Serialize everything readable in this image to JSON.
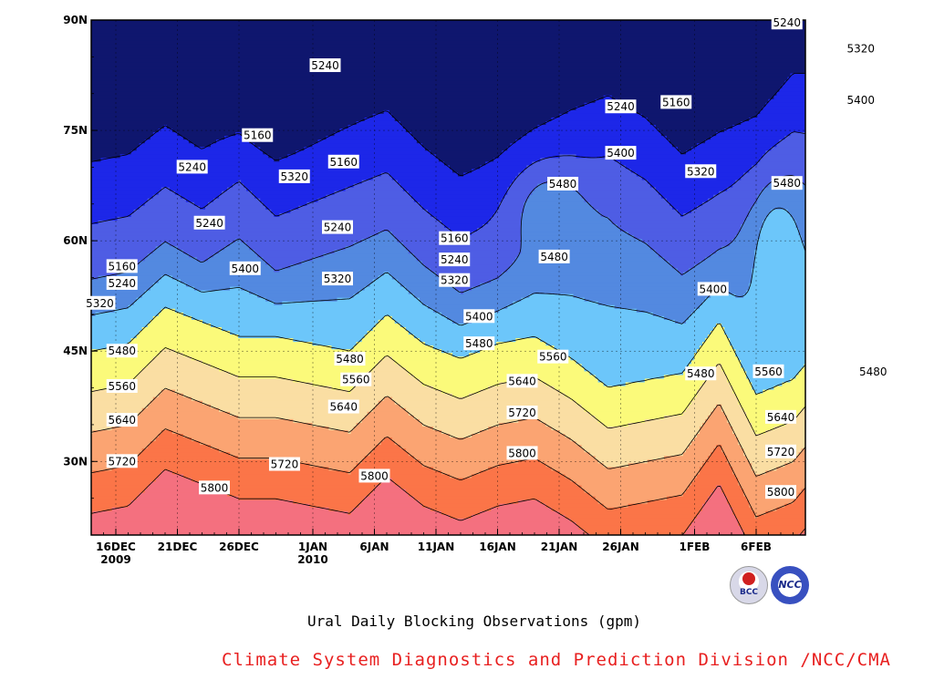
{
  "chart_data": {
    "type": "heatmap",
    "title": "Ural Daily Blocking Observations (gpm)",
    "xlabel": "",
    "ylabel": "",
    "x_tick_labels": [
      {
        "line1": "16DEC",
        "line2": "2009"
      },
      {
        "line1": "21DEC",
        "line2": ""
      },
      {
        "line1": "26DEC",
        "line2": ""
      },
      {
        "line1": "1JAN",
        "line2": "2010"
      },
      {
        "line1": "6JAN",
        "line2": ""
      },
      {
        "line1": "11JAN",
        "line2": ""
      },
      {
        "line1": "16JAN",
        "line2": ""
      },
      {
        "line1": "21JAN",
        "line2": ""
      },
      {
        "line1": "26JAN",
        "line2": ""
      },
      {
        "line1": "1FEB",
        "line2": ""
      },
      {
        "line1": "6FEB",
        "line2": ""
      }
    ],
    "x_day_range": [
      "14DEC2009",
      "10FEB2010"
    ],
    "y_tick_labels": [
      "30N",
      "45N",
      "60N",
      "75N",
      "90N"
    ],
    "ylim": [
      20,
      90
    ],
    "contour_levels": [
      5160,
      5240,
      5320,
      5400,
      5480,
      5560,
      5640,
      5720,
      5800
    ],
    "level_colors": [
      "#0f166e",
      "#1d27e8",
      "#4e5de4",
      "#5389e0",
      "#6cc6fa",
      "#fbfa7a",
      "#fadea3",
      "#fba472",
      "#fb7548",
      "#f4707f"
    ],
    "grid": true,
    "contour_labels": [
      {
        "text": "5160",
        "day": 16.5,
        "lat": 56.5
      },
      {
        "text": "5240",
        "day": 16.5,
        "lat": 54.2
      },
      {
        "text": "5320",
        "day": 14.7,
        "lat": 51.5
      },
      {
        "text": "5480",
        "day": 16.5,
        "lat": 45.0
      },
      {
        "text": "5560",
        "day": 16.5,
        "lat": 40.2
      },
      {
        "text": "5640",
        "day": 16.5,
        "lat": 35.6
      },
      {
        "text": "5720",
        "day": 16.5,
        "lat": 30.0
      },
      {
        "text": "5800",
        "day": 24.0,
        "lat": 26.4
      },
      {
        "text": "5240",
        "day": 22.2,
        "lat": 70.0
      },
      {
        "text": "5160",
        "day": 27.5,
        "lat": 74.3
      },
      {
        "text": "5240",
        "day": 23.6,
        "lat": 62.4
      },
      {
        "text": "5400",
        "day": 26.5,
        "lat": 56.2
      },
      {
        "text": "5320",
        "day": 30.5,
        "lat": 68.7
      },
      {
        "text": "5240",
        "day": 33.0,
        "lat": 83.8
      },
      {
        "text": "5160",
        "day": 34.5,
        "lat": 70.7
      },
      {
        "text": "5240",
        "day": 34.0,
        "lat": 61.8
      },
      {
        "text": "5320",
        "day": 34.0,
        "lat": 54.8
      },
      {
        "text": "5480",
        "day": 35.0,
        "lat": 43.9
      },
      {
        "text": "5560",
        "day": 35.5,
        "lat": 41.1
      },
      {
        "text": "5640",
        "day": 34.5,
        "lat": 37.4
      },
      {
        "text": "5720",
        "day": 29.7,
        "lat": 29.6
      },
      {
        "text": "5800",
        "day": 37.0,
        "lat": 28.0
      },
      {
        "text": "5160",
        "day": 43.5,
        "lat": 60.3
      },
      {
        "text": "5240",
        "day": 43.5,
        "lat": 57.4
      },
      {
        "text": "5320",
        "day": 43.5,
        "lat": 54.6
      },
      {
        "text": "5400",
        "day": 45.5,
        "lat": 49.7
      },
      {
        "text": "5480",
        "day": 45.5,
        "lat": 46.0
      },
      {
        "text": "5560",
        "day": 51.5,
        "lat": 44.2
      },
      {
        "text": "5640",
        "day": 49.0,
        "lat": 40.9
      },
      {
        "text": "5720",
        "day": 49.0,
        "lat": 36.6
      },
      {
        "text": "5800",
        "day": 49.0,
        "lat": 31.1
      },
      {
        "text": "5480",
        "day": 52.3,
        "lat": 67.7
      },
      {
        "text": "5480",
        "day": 51.6,
        "lat": 57.8
      },
      {
        "text": "5240",
        "day": 57.0,
        "lat": 78.2
      },
      {
        "text": "5400",
        "day": 57.0,
        "lat": 71.9
      },
      {
        "text": "5160",
        "day": 61.5,
        "lat": 78.8
      },
      {
        "text": "5320",
        "day": 63.5,
        "lat": 69.4
      },
      {
        "text": "5400",
        "day": 64.5,
        "lat": 53.4
      },
      {
        "text": "5480",
        "day": 63.5,
        "lat": 41.9
      },
      {
        "text": "5560",
        "day": 69.0,
        "lat": 42.2
      },
      {
        "text": "5640",
        "day": 70.0,
        "lat": 36.0
      },
      {
        "text": "5720",
        "day": 70.0,
        "lat": 31.3
      },
      {
        "text": "5800",
        "day": 70.0,
        "lat": 25.8
      },
      {
        "text": "5480",
        "day": 70.5,
        "lat": 67.8
      },
      {
        "text": "5240",
        "day": 70.5,
        "lat": 89.6
      },
      {
        "text": "5320",
        "day": 76.5,
        "lat": 86.1
      },
      {
        "text": "5400",
        "day": 76.5,
        "lat": 79.1
      },
      {
        "text": "5480",
        "day": 77.5,
        "lat": 42.2
      }
    ]
  },
  "footer": {
    "title": "Ural Daily Blocking Observations (gpm)",
    "credit": "Climate System Diagnostics and Prediction Division /NCC/CMA"
  },
  "logos": {
    "bcc_text": "BCC",
    "ncc_text": "NCC"
  }
}
